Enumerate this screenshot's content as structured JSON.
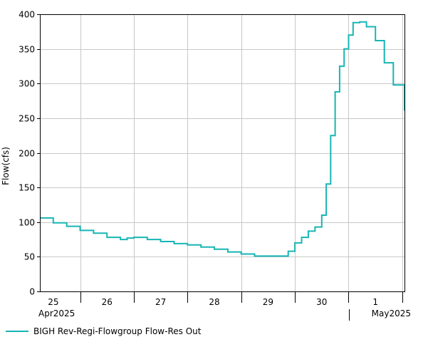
{
  "chart_data": {
    "type": "line",
    "ylabel": "Flow(cfs)",
    "ylim": [
      0,
      400
    ],
    "yticks": [
      0,
      50,
      100,
      150,
      200,
      250,
      300,
      350,
      400
    ],
    "xlim": [
      "2025-04-24T18:00",
      "2025-05-01T13:00"
    ],
    "x_day_ticks": [
      {
        "date": "2025-04-25",
        "label": "25"
      },
      {
        "date": "2025-04-26",
        "label": "26"
      },
      {
        "date": "2025-04-27",
        "label": "27"
      },
      {
        "date": "2025-04-28",
        "label": "28"
      },
      {
        "date": "2025-04-29",
        "label": "29"
      },
      {
        "date": "2025-04-30",
        "label": "30"
      },
      {
        "date": "2025-05-01",
        "label": "1"
      }
    ],
    "x_month_labels": [
      "Apr2025",
      "May2025"
    ],
    "grid": true,
    "legend_position": "bottom-left",
    "series": [
      {
        "name": "BIGH Rev-Regi-Flowgroup Flow-Res Out",
        "color": "#19b5b5",
        "step": true,
        "points": [
          [
            "2025-04-24T18:00",
            106
          ],
          [
            "2025-04-25T00:00",
            99
          ],
          [
            "2025-04-25T06:00",
            94
          ],
          [
            "2025-04-25T12:00",
            88
          ],
          [
            "2025-04-25T18:00",
            84
          ],
          [
            "2025-04-26T00:00",
            78
          ],
          [
            "2025-04-26T06:00",
            75
          ],
          [
            "2025-04-26T09:00",
            77
          ],
          [
            "2025-04-26T12:00",
            78
          ],
          [
            "2025-04-26T18:00",
            75
          ],
          [
            "2025-04-27T00:00",
            72
          ],
          [
            "2025-04-27T06:00",
            69
          ],
          [
            "2025-04-27T12:00",
            67
          ],
          [
            "2025-04-27T18:00",
            64
          ],
          [
            "2025-04-28T00:00",
            61
          ],
          [
            "2025-04-28T06:00",
            57
          ],
          [
            "2025-04-28T12:00",
            54
          ],
          [
            "2025-04-28T18:00",
            51
          ],
          [
            "2025-04-29T00:00",
            51
          ],
          [
            "2025-04-29T06:00",
            51
          ],
          [
            "2025-04-29T09:00",
            58
          ],
          [
            "2025-04-29T12:00",
            70
          ],
          [
            "2025-04-29T15:00",
            78
          ],
          [
            "2025-04-29T18:00",
            87
          ],
          [
            "2025-04-29T21:00",
            93
          ],
          [
            "2025-04-30T00:00",
            110
          ],
          [
            "2025-04-30T02:00",
            155
          ],
          [
            "2025-04-30T04:00",
            225
          ],
          [
            "2025-04-30T06:00",
            288
          ],
          [
            "2025-04-30T08:00",
            325
          ],
          [
            "2025-04-30T10:00",
            350
          ],
          [
            "2025-04-30T12:00",
            370
          ],
          [
            "2025-04-30T14:00",
            388
          ],
          [
            "2025-04-30T17:00",
            389
          ],
          [
            "2025-04-30T20:00",
            382
          ],
          [
            "2025-05-01T00:00",
            362
          ],
          [
            "2025-05-01T04:00",
            330
          ],
          [
            "2025-05-01T08:00",
            298
          ],
          [
            "2025-05-01T13:00",
            261
          ]
        ]
      }
    ]
  }
}
